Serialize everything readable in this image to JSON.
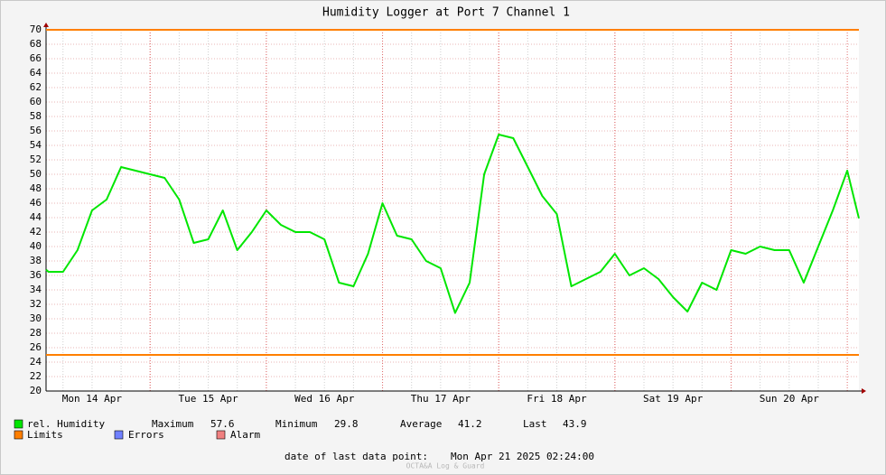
{
  "chart_data": {
    "type": "line",
    "title": "Humidity Logger at Port 7 Channel 1",
    "x": [
      "2025-04-14T02:30",
      "2025-04-14T03:00",
      "2025-04-14T06:00",
      "2025-04-14T09:00",
      "2025-04-14T12:00",
      "2025-04-14T15:00",
      "2025-04-14T18:00",
      "2025-04-14T21:00",
      "2025-04-15T00:00",
      "2025-04-15T03:00",
      "2025-04-15T06:00",
      "2025-04-15T09:00",
      "2025-04-15T12:00",
      "2025-04-15T15:00",
      "2025-04-15T18:00",
      "2025-04-15T21:00",
      "2025-04-16T00:00",
      "2025-04-16T03:00",
      "2025-04-16T06:00",
      "2025-04-16T09:00",
      "2025-04-16T12:00",
      "2025-04-16T15:00",
      "2025-04-16T18:00",
      "2025-04-16T21:00",
      "2025-04-17T00:00",
      "2025-04-17T03:00",
      "2025-04-17T06:00",
      "2025-04-17T09:00",
      "2025-04-17T12:00",
      "2025-04-17T15:00",
      "2025-04-17T18:00",
      "2025-04-17T21:00",
      "2025-04-18T00:00",
      "2025-04-18T03:00",
      "2025-04-18T06:00",
      "2025-04-18T09:00",
      "2025-04-18T12:00",
      "2025-04-18T15:00",
      "2025-04-18T18:00",
      "2025-04-18T21:00",
      "2025-04-19T00:00",
      "2025-04-19T03:00",
      "2025-04-19T06:00",
      "2025-04-19T09:00",
      "2025-04-19T12:00",
      "2025-04-19T15:00",
      "2025-04-19T18:00",
      "2025-04-19T21:00",
      "2025-04-20T00:00",
      "2025-04-20T03:00",
      "2025-04-20T06:00",
      "2025-04-20T09:00",
      "2025-04-20T12:00",
      "2025-04-20T15:00",
      "2025-04-20T18:00",
      "2025-04-20T21:00",
      "2025-04-21T00:00",
      "2025-04-21T02:24"
    ],
    "series": [
      {
        "name": "rel. Humidity",
        "color": "#00e600",
        "values": [
          36.8,
          36.5,
          36.5,
          39.5,
          45,
          46.5,
          51,
          50.5,
          50,
          49.5,
          46.5,
          40.5,
          41,
          45,
          39.5,
          42,
          45,
          43,
          42,
          42,
          41,
          35,
          34.5,
          39,
          46,
          41.5,
          41,
          38,
          37,
          30.8,
          35,
          50,
          55.5,
          55,
          51,
          47,
          44.5,
          34.5,
          35.5,
          36.5,
          39,
          36,
          37,
          35.5,
          33,
          31,
          35,
          34,
          39.5,
          39,
          40,
          39.5,
          39.5,
          35,
          40,
          45,
          50.5,
          43.9
        ]
      }
    ],
    "limits": {
      "name": "Limits",
      "color": "#ff7f00",
      "values": [
        25,
        70
      ]
    },
    "legend_extra": [
      {
        "name": "Errors",
        "color": "#7080ff"
      },
      {
        "name": "Alarm",
        "color": "#f08080"
      }
    ],
    "stats": [
      {
        "label": "Maximum",
        "value": 57.6
      },
      {
        "label": "Minimum",
        "value": 29.8
      },
      {
        "label": "Average",
        "value": 41.2
      },
      {
        "label": "Last",
        "value": 43.9
      }
    ],
    "footer_label": "date of last data point:",
    "footer_value": "Mon Apr 21 2025 02:24:00",
    "credit": "OCTA&A Log & Guard",
    "xlim": [
      "2025-04-14T02:30",
      "2025-04-21T02:24"
    ],
    "xticks": [
      {
        "value": "2025-04-14T12:00",
        "label": "Mon 14 Apr"
      },
      {
        "value": "2025-04-15T12:00",
        "label": "Tue 15 Apr"
      },
      {
        "value": "2025-04-16T12:00",
        "label": "Wed 16 Apr"
      },
      {
        "value": "2025-04-17T12:00",
        "label": "Thu 17 Apr"
      },
      {
        "value": "2025-04-18T12:00",
        "label": "Fri 18 Apr"
      },
      {
        "value": "2025-04-19T12:00",
        "label": "Sat 19 Apr"
      },
      {
        "value": "2025-04-20T12:00",
        "label": "Sun 20 Apr"
      }
    ],
    "ylim": [
      20,
      70
    ],
    "yticks": [
      20,
      22,
      24,
      26,
      28,
      30,
      32,
      34,
      36,
      38,
      40,
      42,
      44,
      46,
      48,
      50,
      52,
      54,
      56,
      58,
      60,
      62,
      64,
      66,
      68,
      70
    ],
    "grid": true
  }
}
